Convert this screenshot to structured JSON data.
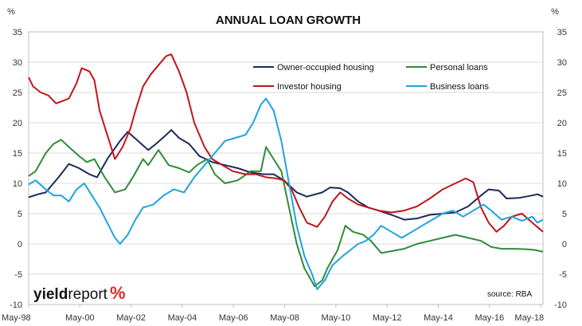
{
  "chart_data": {
    "type": "line",
    "title": "ANNUAL LOAN GROWTH",
    "y_unit_left": "%",
    "y_unit_right": "%",
    "ylim": [
      -10,
      35
    ],
    "yticks": [
      -10,
      -5,
      0,
      5,
      10,
      15,
      20,
      25,
      30,
      35
    ],
    "right_yticks": [
      -10,
      -5,
      0,
      5,
      10,
      15,
      20,
      25,
      30,
      35
    ],
    "xlim": [
      1998.33,
      2018.42
    ],
    "xticks": [
      {
        "label": "May-98",
        "x": 1998.33
      },
      {
        "label": "May-00",
        "x": 2000.33
      },
      {
        "label": "May-02",
        "x": 2002.33
      },
      {
        "label": "May-04",
        "x": 2004.33
      },
      {
        "label": "May-06",
        "x": 2006.33
      },
      {
        "label": "May-08",
        "x": 2008.33
      },
      {
        "label": "May-10",
        "x": 2010.33
      },
      {
        "label": "May-12",
        "x": 2012.33
      },
      {
        "label": "May-14",
        "x": 2014.33
      },
      {
        "label": "May-16",
        "x": 2016.33
      },
      {
        "label": "May-18",
        "x": 2018.33
      }
    ],
    "grid": true,
    "legend_position": "top-center",
    "source": "source: RBA",
    "logo": {
      "part1": "yield",
      "part2": "report",
      "mark": "%"
    },
    "series": [
      {
        "name": "Owner-occupied housing",
        "color": "#1b2a5c",
        "points": [
          [
            1998.33,
            7.7
          ],
          [
            1998.7,
            8.2
          ],
          [
            1999.0,
            8.5
          ],
          [
            1999.5,
            11.0
          ],
          [
            1999.9,
            13.2
          ],
          [
            2000.3,
            12.5
          ],
          [
            2000.7,
            11.5
          ],
          [
            2001.0,
            11.0
          ],
          [
            2001.4,
            14.0
          ],
          [
            2001.9,
            17.0
          ],
          [
            2002.2,
            18.5
          ],
          [
            2002.6,
            17.0
          ],
          [
            2003.0,
            15.5
          ],
          [
            2003.3,
            16.5
          ],
          [
            2003.7,
            18.0
          ],
          [
            2003.9,
            18.8
          ],
          [
            2004.2,
            17.5
          ],
          [
            2004.6,
            16.5
          ],
          [
            2005.0,
            14.5
          ],
          [
            2005.5,
            13.5
          ],
          [
            2006.0,
            13.0
          ],
          [
            2006.5,
            12.5
          ],
          [
            2007.0,
            11.8
          ],
          [
            2007.5,
            11.5
          ],
          [
            2007.9,
            11.5
          ],
          [
            2008.3,
            10.5
          ],
          [
            2008.8,
            8.5
          ],
          [
            2009.2,
            7.8
          ],
          [
            2009.8,
            8.5
          ],
          [
            2010.1,
            9.3
          ],
          [
            2010.5,
            9.2
          ],
          [
            2010.8,
            8.5
          ],
          [
            2011.2,
            7.0
          ],
          [
            2011.6,
            6.0
          ],
          [
            2012.0,
            5.5
          ],
          [
            2012.5,
            4.8
          ],
          [
            2013.0,
            4.0
          ],
          [
            2013.5,
            4.2
          ],
          [
            2014.0,
            4.8
          ],
          [
            2014.5,
            5.0
          ],
          [
            2015.0,
            5.2
          ],
          [
            2015.5,
            6.2
          ],
          [
            2016.0,
            8.0
          ],
          [
            2016.3,
            9.0
          ],
          [
            2016.7,
            8.8
          ],
          [
            2017.0,
            7.5
          ],
          [
            2017.5,
            7.6
          ],
          [
            2018.0,
            8.0
          ],
          [
            2018.2,
            8.2
          ],
          [
            2018.42,
            7.8
          ]
        ]
      },
      {
        "name": "Personal loans",
        "color": "#2e8b3a",
        "points": [
          [
            1998.33,
            11.2
          ],
          [
            1998.6,
            12.0
          ],
          [
            1999.0,
            15.0
          ],
          [
            1999.3,
            16.5
          ],
          [
            1999.6,
            17.2
          ],
          [
            1999.9,
            16.0
          ],
          [
            2000.3,
            14.5
          ],
          [
            2000.6,
            13.5
          ],
          [
            2000.9,
            14.0
          ],
          [
            2001.3,
            11.0
          ],
          [
            2001.7,
            8.5
          ],
          [
            2002.1,
            9.0
          ],
          [
            2002.4,
            11.0
          ],
          [
            2002.8,
            14.0
          ],
          [
            2003.0,
            13.0
          ],
          [
            2003.4,
            15.5
          ],
          [
            2003.8,
            13.0
          ],
          [
            2004.2,
            12.5
          ],
          [
            2004.6,
            11.8
          ],
          [
            2004.9,
            13.0
          ],
          [
            2005.3,
            14.0
          ],
          [
            2005.6,
            11.5
          ],
          [
            2006.0,
            10.0
          ],
          [
            2006.5,
            10.5
          ],
          [
            2007.0,
            12.0
          ],
          [
            2007.4,
            12.0
          ],
          [
            2007.6,
            16.0
          ],
          [
            2007.9,
            14.0
          ],
          [
            2008.2,
            12.0
          ],
          [
            2008.5,
            6.0
          ],
          [
            2008.8,
            0.0
          ],
          [
            2009.1,
            -4.0
          ],
          [
            2009.5,
            -7.0
          ],
          [
            2009.8,
            -6.0
          ],
          [
            2010.0,
            -4.0
          ],
          [
            2010.4,
            -1.0
          ],
          [
            2010.7,
            3.0
          ],
          [
            2011.0,
            2.0
          ],
          [
            2011.4,
            1.5
          ],
          [
            2011.7,
            0.5
          ],
          [
            2012.1,
            -1.5
          ],
          [
            2012.5,
            -1.2
          ],
          [
            2013.0,
            -0.8
          ],
          [
            2013.5,
            0.0
          ],
          [
            2014.0,
            0.5
          ],
          [
            2014.5,
            1.0
          ],
          [
            2015.0,
            1.5
          ],
          [
            2015.5,
            1.0
          ],
          [
            2016.0,
            0.5
          ],
          [
            2016.4,
            -0.5
          ],
          [
            2016.8,
            -0.8
          ],
          [
            2017.3,
            -0.8
          ],
          [
            2017.8,
            -0.9
          ],
          [
            2018.1,
            -1.0
          ],
          [
            2018.42,
            -1.3
          ]
        ]
      },
      {
        "name": "Investor housing",
        "color": "#c0151b",
        "points": [
          [
            1998.33,
            27.5
          ],
          [
            1998.5,
            26.0
          ],
          [
            1998.8,
            25.0
          ],
          [
            1999.1,
            24.5
          ],
          [
            1999.4,
            23.2
          ],
          [
            1999.6,
            23.5
          ],
          [
            1999.9,
            24.0
          ],
          [
            2000.2,
            26.5
          ],
          [
            2000.4,
            29.0
          ],
          [
            2000.7,
            28.5
          ],
          [
            2000.9,
            27.0
          ],
          [
            2001.1,
            22.0
          ],
          [
            2001.4,
            18.0
          ],
          [
            2001.7,
            14.0
          ],
          [
            2002.0,
            16.0
          ],
          [
            2002.3,
            19.0
          ],
          [
            2002.5,
            22.0
          ],
          [
            2002.8,
            26.0
          ],
          [
            2003.1,
            28.0
          ],
          [
            2003.4,
            29.5
          ],
          [
            2003.7,
            31.0
          ],
          [
            2003.9,
            31.3
          ],
          [
            2004.2,
            28.5
          ],
          [
            2004.5,
            25.0
          ],
          [
            2004.8,
            20.0
          ],
          [
            2005.2,
            16.0
          ],
          [
            2005.5,
            14.0
          ],
          [
            2005.9,
            13.0
          ],
          [
            2006.3,
            12.0
          ],
          [
            2006.8,
            11.5
          ],
          [
            2007.2,
            11.5
          ],
          [
            2007.6,
            11.0
          ],
          [
            2008.0,
            10.8
          ],
          [
            2008.3,
            10.5
          ],
          [
            2008.6,
            9.0
          ],
          [
            2008.9,
            6.0
          ],
          [
            2009.2,
            3.5
          ],
          [
            2009.6,
            2.8
          ],
          [
            2009.9,
            4.5
          ],
          [
            2010.2,
            7.0
          ],
          [
            2010.5,
            8.5
          ],
          [
            2010.8,
            7.5
          ],
          [
            2011.2,
            6.5
          ],
          [
            2011.6,
            6.0
          ],
          [
            2012.0,
            5.5
          ],
          [
            2012.5,
            5.2
          ],
          [
            2013.0,
            5.5
          ],
          [
            2013.5,
            6.2
          ],
          [
            2014.0,
            7.5
          ],
          [
            2014.5,
            9.0
          ],
          [
            2015.0,
            10.0
          ],
          [
            2015.4,
            10.8
          ],
          [
            2015.7,
            10.2
          ],
          [
            2016.0,
            6.0
          ],
          [
            2016.3,
            3.5
          ],
          [
            2016.6,
            2.0
          ],
          [
            2016.9,
            3.0
          ],
          [
            2017.2,
            4.5
          ],
          [
            2017.6,
            5.0
          ],
          [
            2018.0,
            3.5
          ],
          [
            2018.42,
            2.0
          ]
        ]
      },
      {
        "name": "Business loans",
        "color": "#1fa3dc",
        "points": [
          [
            1998.33,
            9.8
          ],
          [
            1998.6,
            10.5
          ],
          [
            1999.0,
            9.0
          ],
          [
            1999.3,
            8.0
          ],
          [
            1999.6,
            8.0
          ],
          [
            1999.9,
            7.0
          ],
          [
            2000.2,
            9.0
          ],
          [
            2000.5,
            10.0
          ],
          [
            2000.8,
            8.0
          ],
          [
            2001.1,
            6.0
          ],
          [
            2001.4,
            3.5
          ],
          [
            2001.7,
            1.0
          ],
          [
            2001.9,
            0.0
          ],
          [
            2002.2,
            1.5
          ],
          [
            2002.5,
            4.0
          ],
          [
            2002.8,
            6.0
          ],
          [
            2003.2,
            6.5
          ],
          [
            2003.6,
            8.0
          ],
          [
            2004.0,
            9.0
          ],
          [
            2004.4,
            8.5
          ],
          [
            2004.8,
            11.0
          ],
          [
            2005.2,
            13.0
          ],
          [
            2005.6,
            15.0
          ],
          [
            2006.0,
            17.0
          ],
          [
            2006.4,
            17.5
          ],
          [
            2006.8,
            18.0
          ],
          [
            2007.1,
            20.0
          ],
          [
            2007.4,
            23.0
          ],
          [
            2007.6,
            24.0
          ],
          [
            2007.9,
            22.0
          ],
          [
            2008.2,
            17.0
          ],
          [
            2008.5,
            10.0
          ],
          [
            2008.8,
            3.0
          ],
          [
            2009.1,
            -2.0
          ],
          [
            2009.4,
            -5.0
          ],
          [
            2009.6,
            -7.5
          ],
          [
            2009.9,
            -6.0
          ],
          [
            2010.2,
            -3.5
          ],
          [
            2010.6,
            -2.0
          ],
          [
            2010.9,
            -1.0
          ],
          [
            2011.2,
            0.0
          ],
          [
            2011.5,
            0.5
          ],
          [
            2011.8,
            1.5
          ],
          [
            2012.1,
            3.0
          ],
          [
            2012.5,
            2.0
          ],
          [
            2012.9,
            1.0
          ],
          [
            2013.3,
            2.0
          ],
          [
            2013.7,
            3.0
          ],
          [
            2014.1,
            4.0
          ],
          [
            2014.5,
            5.0
          ],
          [
            2014.9,
            5.5
          ],
          [
            2015.3,
            4.5
          ],
          [
            2015.7,
            5.5
          ],
          [
            2016.1,
            6.5
          ],
          [
            2016.4,
            5.5
          ],
          [
            2016.8,
            4.0
          ],
          [
            2017.2,
            4.5
          ],
          [
            2017.6,
            3.8
          ],
          [
            2018.0,
            4.5
          ],
          [
            2018.2,
            3.5
          ],
          [
            2018.42,
            4.0
          ]
        ]
      }
    ]
  }
}
